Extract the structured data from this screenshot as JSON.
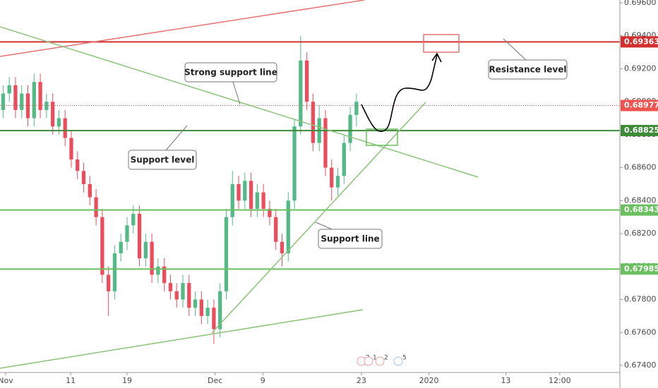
{
  "chart_data": {
    "type": "candlestick",
    "up_color": "#53b987",
    "down_color": "#eb4d5c",
    "x": [
      0,
      1,
      2,
      3,
      4,
      5,
      6,
      7,
      8,
      9,
      10,
      11,
      12,
      13,
      14,
      15,
      16,
      17,
      18,
      19,
      20,
      21,
      22,
      23,
      24,
      25,
      26,
      27,
      28,
      29,
      30,
      31,
      32,
      33,
      34,
      35,
      36,
      37,
      38,
      39,
      40,
      41,
      42,
      43,
      44,
      45,
      46,
      47,
      48,
      49,
      50,
      51,
      52,
      53,
      54,
      55,
      56,
      57
    ],
    "open": [
      0.6895,
      0.6905,
      0.691,
      0.6895,
      0.6905,
      0.689,
      0.6912,
      0.6895,
      0.69,
      0.6885,
      0.689,
      0.6878,
      0.6865,
      0.6858,
      0.685,
      0.6842,
      0.683,
      0.6795,
      0.6785,
      0.6808,
      0.6815,
      0.6825,
      0.6832,
      0.6805,
      0.6815,
      0.6795,
      0.68,
      0.679,
      0.6785,
      0.678,
      0.679,
      0.6775,
      0.678,
      0.677,
      0.6775,
      0.6762,
      0.6785,
      0.683,
      0.685,
      0.684,
      0.6852,
      0.6835,
      0.6845,
      0.6835,
      0.683,
      0.6815,
      0.6808,
      0.684,
      0.6885,
      0.6925,
      0.69,
      0.6875,
      0.689,
      0.686,
      0.6848,
      0.6855,
      0.6875,
      0.6892
    ],
    "high": [
      0.691,
      0.6915,
      0.6915,
      0.691,
      0.691,
      0.6917,
      0.6917,
      0.6905,
      0.6905,
      0.6895,
      0.6895,
      0.6883,
      0.687,
      0.6863,
      0.6855,
      0.6847,
      0.6835,
      0.68,
      0.6813,
      0.682,
      0.683,
      0.6837,
      0.6837,
      0.682,
      0.682,
      0.6805,
      0.6805,
      0.6795,
      0.679,
      0.6795,
      0.6795,
      0.6785,
      0.6785,
      0.678,
      0.678,
      0.679,
      0.6835,
      0.6858,
      0.6855,
      0.6857,
      0.6857,
      0.685,
      0.685,
      0.684,
      0.6835,
      0.682,
      0.6845,
      0.689,
      0.694,
      0.693,
      0.6905,
      0.6898,
      0.6895,
      0.6865,
      0.686,
      0.688,
      0.6897,
      0.6905
    ],
    "low": [
      0.689,
      0.69,
      0.689,
      0.689,
      0.6885,
      0.6885,
      0.689,
      0.689,
      0.688,
      0.688,
      0.6873,
      0.686,
      0.6853,
      0.6845,
      0.6837,
      0.6825,
      0.679,
      0.677,
      0.678,
      0.6803,
      0.681,
      0.682,
      0.68,
      0.68,
      0.679,
      0.679,
      0.6785,
      0.678,
      0.6775,
      0.6775,
      0.677,
      0.677,
      0.6765,
      0.6765,
      0.6753,
      0.6757,
      0.678,
      0.6825,
      0.6835,
      0.6835,
      0.683,
      0.683,
      0.683,
      0.6825,
      0.681,
      0.68,
      0.6803,
      0.6835,
      0.688,
      0.6895,
      0.687,
      0.687,
      0.6855,
      0.684,
      0.6843,
      0.685,
      0.687,
      0.6885
    ],
    "close": [
      0.6905,
      0.691,
      0.6895,
      0.6905,
      0.689,
      0.6912,
      0.6895,
      0.69,
      0.6885,
      0.689,
      0.6878,
      0.6865,
      0.6858,
      0.685,
      0.6842,
      0.683,
      0.6795,
      0.6785,
      0.6808,
      0.6815,
      0.6825,
      0.6832,
      0.6805,
      0.6815,
      0.6795,
      0.68,
      0.679,
      0.6785,
      0.678,
      0.679,
      0.6775,
      0.678,
      0.677,
      0.6775,
      0.6762,
      0.6785,
      0.683,
      0.685,
      0.684,
      0.6852,
      0.6835,
      0.6845,
      0.6835,
      0.683,
      0.6815,
      0.6808,
      0.684,
      0.6885,
      0.6925,
      0.69,
      0.6875,
      0.689,
      0.686,
      0.6848,
      0.6855,
      0.6875,
      0.6892,
      0.69
    ],
    "xlim": [
      -0.5,
      99.5
    ],
    "xticks": [
      {
        "value": 0.41,
        "label": "Nov"
      },
      {
        "value": 10.9,
        "label": "11"
      },
      {
        "value": 20.0,
        "label": "19"
      },
      {
        "value": 34.2,
        "label": "Dec"
      },
      {
        "value": 41.9,
        "label": "9"
      },
      {
        "value": 57.8,
        "label": "23"
      },
      {
        "value": 68.7,
        "label": "2020"
      },
      {
        "value": 81.1,
        "label": "13"
      },
      {
        "value": 89.8,
        "label": "12:00"
      }
    ],
    "ylim": [
      0.674,
      0.696
    ],
    "yticks": [
      {
        "value": 0.674,
        "label": "0.67400"
      },
      {
        "value": 0.676,
        "label": "0.67600"
      },
      {
        "value": 0.678,
        "label": "0.67800"
      },
      {
        "value": 0.68,
        "label": "0.68000"
      },
      {
        "value": 0.682,
        "label": "0.68200"
      },
      {
        "value": 0.684,
        "label": "0.68400"
      },
      {
        "value": 0.686,
        "label": "0.68600"
      },
      {
        "value": 0.688,
        "label": "0.68800"
      },
      {
        "value": 0.69,
        "label": "0.69000"
      },
      {
        "value": 0.692,
        "label": "0.69200"
      },
      {
        "value": 0.694,
        "label": "0.69400"
      },
      {
        "value": 0.696,
        "label": "0.69600"
      }
    ],
    "levels": [
      {
        "value": 0.69363,
        "color": "#d32f2f"
      },
      {
        "value": 0.68977,
        "color": "#ef5350",
        "dashed": true
      },
      {
        "value": 0.68825,
        "color": "#3d8b37"
      },
      {
        "value": 0.68343,
        "color": "#6abf5e"
      },
      {
        "value": 0.67985,
        "color": "#6abf5e"
      }
    ],
    "annotations": [
      "Strong support line",
      "Support level",
      "Resistance level",
      "Support line"
    ],
    "events": [
      "2",
      "1",
      "2",
      "5"
    ]
  }
}
